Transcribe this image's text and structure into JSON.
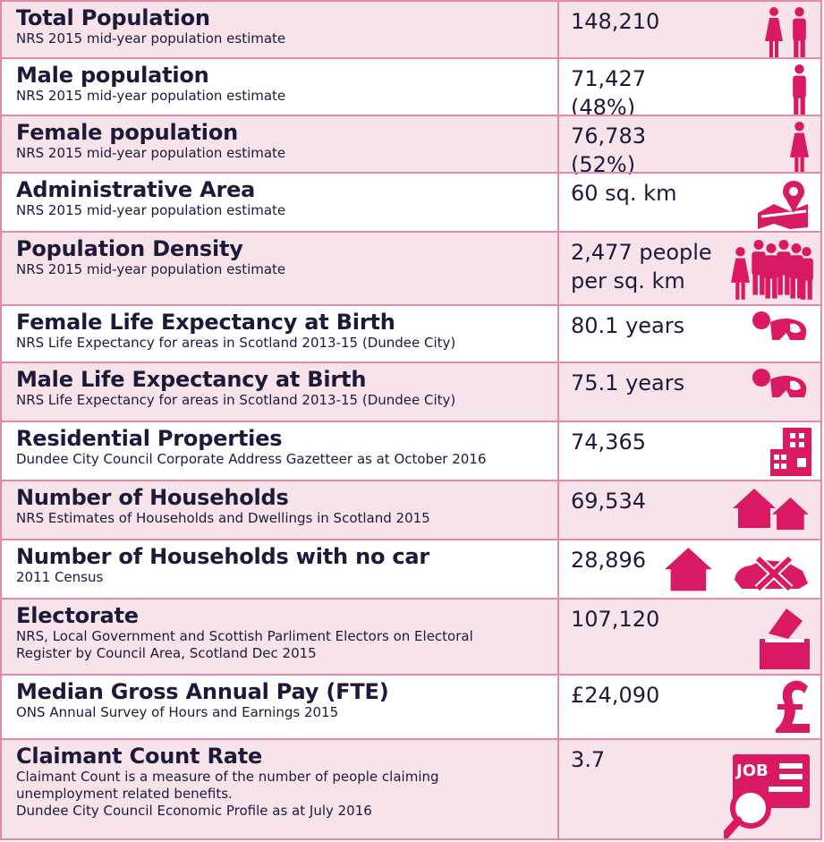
{
  "table": {
    "rows": [
      {
        "title": "Total Population",
        "notes": [
          "NRS 2015 mid-year population estimate"
        ],
        "value": "148,210"
      },
      {
        "title": "Male population",
        "notes": [
          "NRS 2015 mid-year population estimate"
        ],
        "value": "71,427 (48%)"
      },
      {
        "title": "Female population",
        "notes": [
          "NRS 2015 mid-year population estimate"
        ],
        "value": "76,783 (52%)"
      },
      {
        "title": "Administrative Area",
        "notes": [
          "NRS 2015 mid-year population estimate"
        ],
        "value": "60 sq. km"
      },
      {
        "title": "Population Density",
        "notes": [
          "NRS 2015 mid-year population estimate"
        ],
        "value": "2,477 people per sq. km"
      },
      {
        "title": "Female Life Expectancy at Birth",
        "notes": [
          "NRS Life Expectancy for areas in Scotland 2013-15 (Dundee City)"
        ],
        "value": "80.1 years"
      },
      {
        "title": "Male Life Expectancy at Birth",
        "notes": [
          "NRS Life Expectancy for areas in Scotland 2013-15 (Dundee City)"
        ],
        "value": "75.1 years"
      },
      {
        "title": "Residential Properties",
        "notes": [
          "Dundee City Council Corporate Address Gazetteer as at October 2016"
        ],
        "value": "74,365"
      },
      {
        "title": "Number of Households",
        "notes": [
          "NRS Estimates of Households and Dwellings in Scotland 2015"
        ],
        "value": "69,534"
      },
      {
        "title": "Number of Households with no car",
        "notes": [
          "2011 Census"
        ],
        "value": "28,896"
      },
      {
        "title": "Electorate",
        "notes": [
          "NRS, Local Government and Scottish Parliment Electors on Electoral",
          "Register by Council Area, Scotland Dec 2015"
        ],
        "value": "107,120"
      },
      {
        "title": "Median Gross Annual Pay (FTE)",
        "notes": [
          "ONS Annual Survey of Hours and Earnings 2015"
        ],
        "value": "£24,090"
      },
      {
        "title": "Claimant Count Rate",
        "notes": [
          "Claimant Count is a measure of the number of people claiming",
          "unemployment related benefits.",
          "Dundee City Council Economic Profile as at July 2016"
        ],
        "value": "3.7",
        "icon_text": "JOB"
      }
    ]
  }
}
